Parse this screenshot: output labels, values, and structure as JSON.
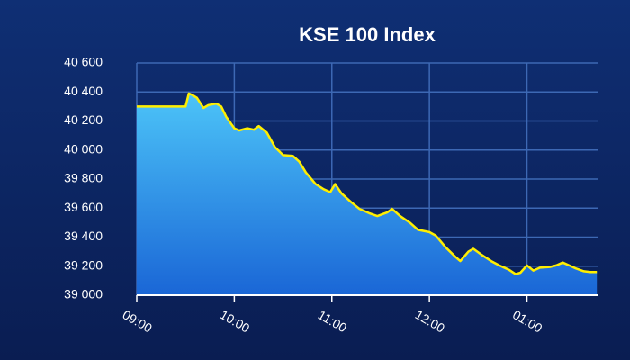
{
  "chart_data": {
    "type": "area",
    "title": "KSE 100 Index",
    "x": [
      0,
      30,
      32,
      34,
      37,
      41,
      44,
      49,
      52,
      55,
      60,
      63,
      68,
      72,
      75,
      80,
      85,
      90,
      96,
      100,
      104,
      110,
      115,
      119,
      122,
      126,
      132,
      137,
      143,
      148,
      154,
      157,
      162,
      168,
      173,
      180,
      184,
      190,
      196,
      199,
      204,
      207,
      212,
      218,
      223,
      229,
      233,
      236,
      240,
      244,
      248,
      254,
      258,
      262,
      266,
      270,
      275,
      279,
      283
    ],
    "values": [
      40300,
      40300,
      40390,
      40380,
      40360,
      40290,
      40310,
      40320,
      40300,
      40230,
      40150,
      40135,
      40150,
      40140,
      40165,
      40120,
      40020,
      39965,
      39960,
      39920,
      39845,
      39765,
      39730,
      39710,
      39765,
      39700,
      39640,
      39595,
      39565,
      39545,
      39570,
      39595,
      39545,
      39500,
      39450,
      39435,
      39410,
      39330,
      39265,
      39235,
      39300,
      39320,
      39280,
      39235,
      39205,
      39175,
      39145,
      39155,
      39205,
      39170,
      39190,
      39195,
      39205,
      39225,
      39205,
      39185,
      39165,
      39160,
      39160
    ],
    "line_color": "#ffee00",
    "fill_colors": [
      "#4cc4f8",
      "#1a66d6"
    ],
    "xlim": [
      0,
      284
    ],
    "xticks": [
      {
        "value": 0,
        "label": "09:00"
      },
      {
        "value": 60,
        "label": "10:00"
      },
      {
        "value": 120,
        "label": "11:00"
      },
      {
        "value": 180,
        "label": "12:00"
      },
      {
        "value": 240,
        "label": "01:00"
      }
    ],
    "ylim": [
      39000,
      40600
    ],
    "yticks": [
      {
        "value": 39000,
        "label": "39 000"
      },
      {
        "value": 39200,
        "label": "39 200"
      },
      {
        "value": 39400,
        "label": "39 400"
      },
      {
        "value": 39600,
        "label": "39 600"
      },
      {
        "value": 39800,
        "label": "39 800"
      },
      {
        "value": 40000,
        "label": "40 000"
      },
      {
        "value": 40200,
        "label": "40 200"
      },
      {
        "value": 40400,
        "label": "40 400"
      },
      {
        "value": 40600,
        "label": "40 600"
      }
    ],
    "grid": true
  }
}
